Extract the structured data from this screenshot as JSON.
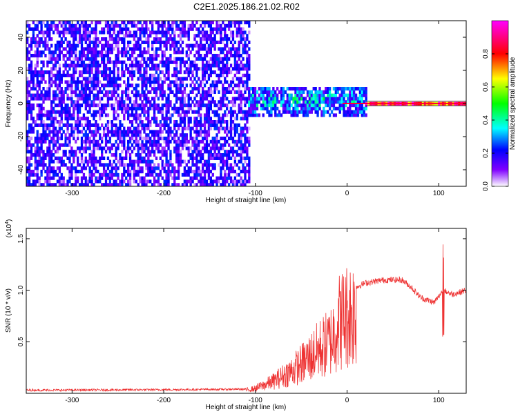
{
  "title": "C2E1.2025.186.21.02.R02",
  "chart_data": [
    {
      "type": "heatmap",
      "title": "C2E1.2025.186.21.02.R02",
      "xlabel": "Height of straight line (km)",
      "ylabel": "Frequency (Hz)",
      "xlim": [
        -350,
        130
      ],
      "ylim": [
        -50,
        50
      ],
      "x_ticks": [
        -300,
        -200,
        -100,
        0,
        100
      ],
      "x_tick_labels": [
        "-300",
        "-200",
        "-100",
        "0",
        "100"
      ],
      "y_ticks": [
        -40,
        -20,
        0,
        20,
        40
      ],
      "y_tick_labels": [
        "-40",
        "-20",
        "0",
        "20",
        "40"
      ],
      "colorbar": {
        "label": "Normalized spectral amplitude",
        "range": [
          0,
          1
        ],
        "ticks": [
          0.0,
          0.2,
          0.4,
          0.6,
          0.8
        ],
        "tick_labels": [
          "0.0",
          "0.2",
          "0.4",
          "0.6",
          "0.8"
        ],
        "colors": [
          "#ffffff",
          "#8000ff",
          "#0000ff",
          "#00ffff",
          "#00ff00",
          "#ffff00",
          "#ff0000",
          "#ff00ff"
        ]
      },
      "regions": [
        {
          "x": [
            -350,
            -108
          ],
          "y": [
            -50,
            50
          ],
          "amplitude": [
            0.02,
            0.25
          ]
        },
        {
          "x": [
            -108,
            20
          ],
          "y": [
            -8,
            10
          ],
          "amplitude": [
            0.1,
            0.5
          ]
        },
        {
          "x": [
            20,
            130
          ],
          "y": [
            -1,
            1
          ],
          "amplitude": [
            0.6,
            1.0
          ]
        }
      ]
    },
    {
      "type": "line",
      "xlabel": "Height of straight line (km)",
      "ylabel": "SNR (10 * v/v)",
      "y_multiplier": "(x10",
      "y_multiplier_exp": "4",
      "y_multiplier_close": ")",
      "xlim": [
        -350,
        130
      ],
      "ylim": [
        0,
        1.6
      ],
      "x_ticks": [
        -300,
        -200,
        -100,
        0,
        100
      ],
      "x_tick_labels": [
        "-300",
        "-200",
        "-100",
        "0",
        "100"
      ],
      "y_ticks": [
        0.5,
        1.0,
        1.5
      ],
      "y_tick_labels": [
        "0.5",
        "1.0",
        "1.5"
      ],
      "series_color": "#ee3333",
      "envelope": {
        "x": [
          -350,
          -200,
          -110,
          -100,
          -80,
          -60,
          -40,
          -30,
          -20,
          -15,
          -10,
          0,
          10,
          20,
          40,
          60,
          70,
          80,
          95,
          105,
          115,
          130
        ],
        "y": [
          0.03,
          0.035,
          0.04,
          0.06,
          0.15,
          0.28,
          0.45,
          0.55,
          0.62,
          0.72,
          0.88,
          0.97,
          1.03,
          1.07,
          1.1,
          1.1,
          1.03,
          0.93,
          0.88,
          1.0,
          0.96,
          1.0
        ]
      }
    }
  ]
}
